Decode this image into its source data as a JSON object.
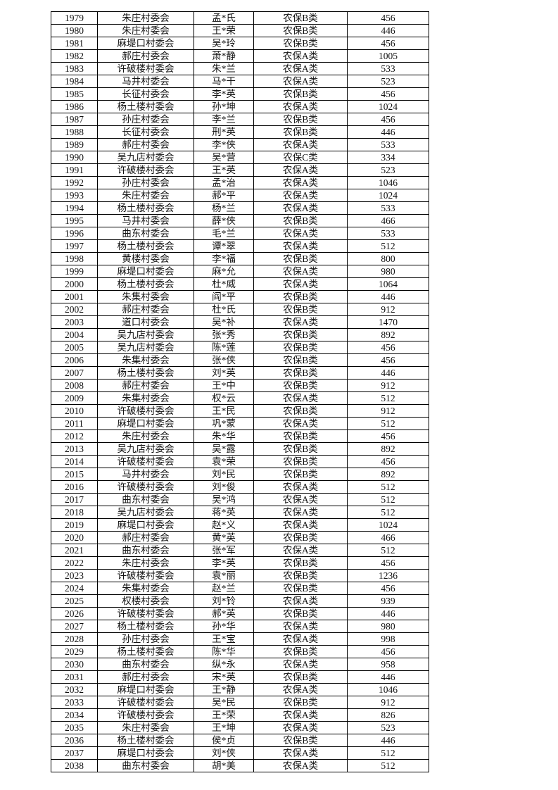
{
  "table": {
    "rows": [
      [
        "1979",
        "朱庄村委会",
        "孟*氏",
        "农保B类",
        "456"
      ],
      [
        "1980",
        "朱庄村委会",
        "王*荣",
        "农保B类",
        "446"
      ],
      [
        "1981",
        "麻堤口村委会",
        "吴*玲",
        "农保B类",
        "456"
      ],
      [
        "1982",
        "郝庄村委会",
        "萧*静",
        "农保A类",
        "1005"
      ],
      [
        "1983",
        "许破楼村委会",
        "朱*兰",
        "农保A类",
        "533"
      ],
      [
        "1984",
        "马井村委会",
        "马*干",
        "农保A类",
        "523"
      ],
      [
        "1985",
        "长征村委会",
        "李*英",
        "农保B类",
        "456"
      ],
      [
        "1986",
        "杨土楼村委会",
        "孙*坤",
        "农保A类",
        "1024"
      ],
      [
        "1987",
        "孙庄村委会",
        "李*兰",
        "农保B类",
        "456"
      ],
      [
        "1988",
        "长征村委会",
        "刑*英",
        "农保B类",
        "446"
      ],
      [
        "1989",
        "郝庄村委会",
        "李*侠",
        "农保A类",
        "533"
      ],
      [
        "1990",
        "吴九店村委会",
        "吴*营",
        "农保C类",
        "334"
      ],
      [
        "1991",
        "许破楼村委会",
        "王*英",
        "农保A类",
        "523"
      ],
      [
        "1992",
        "孙庄村委会",
        "孟*治",
        "农保A类",
        "1046"
      ],
      [
        "1993",
        "朱庄村委会",
        "郝*平",
        "农保A类",
        "1024"
      ],
      [
        "1994",
        "杨土楼村委会",
        "杨*兰",
        "农保A类",
        "533"
      ],
      [
        "1995",
        "马井村委会",
        "薛*侠",
        "农保B类",
        "466"
      ],
      [
        "1996",
        "曲东村委会",
        "毛*兰",
        "农保A类",
        "533"
      ],
      [
        "1997",
        "杨土楼村委会",
        "谭*翠",
        "农保A类",
        "512"
      ],
      [
        "1998",
        "黄楼村委会",
        "李*福",
        "农保B类",
        "800"
      ],
      [
        "1999",
        "麻堤口村委会",
        "麻*允",
        "农保A类",
        "980"
      ],
      [
        "2000",
        "杨土楼村委会",
        "杜*威",
        "农保A类",
        "1064"
      ],
      [
        "2001",
        "朱集村委会",
        "阎*平",
        "农保B类",
        "446"
      ],
      [
        "2002",
        "郝庄村委会",
        "杜*氏",
        "农保B类",
        "912"
      ],
      [
        "2003",
        "道口村委会",
        "吴*补",
        "农保A类",
        "1470"
      ],
      [
        "2004",
        "吴九店村委会",
        "张*秀",
        "农保B类",
        "892"
      ],
      [
        "2005",
        "吴九店村委会",
        "陈*莲",
        "农保B类",
        "456"
      ],
      [
        "2006",
        "朱集村委会",
        "张*侠",
        "农保B类",
        "456"
      ],
      [
        "2007",
        "杨土楼村委会",
        "刘*英",
        "农保B类",
        "446"
      ],
      [
        "2008",
        "郝庄村委会",
        "王*中",
        "农保B类",
        "912"
      ],
      [
        "2009",
        "朱集村委会",
        "权*云",
        "农保A类",
        "512"
      ],
      [
        "2010",
        "许破楼村委会",
        "王*民",
        "农保B类",
        "912"
      ],
      [
        "2011",
        "麻堤口村委会",
        "巩*蒙",
        "农保A类",
        "512"
      ],
      [
        "2012",
        "朱庄村委会",
        "朱*华",
        "农保B类",
        "456"
      ],
      [
        "2013",
        "吴九店村委会",
        "吴*露",
        "农保B类",
        "892"
      ],
      [
        "2014",
        "许破楼村委会",
        "袁*荣",
        "农保B类",
        "456"
      ],
      [
        "2015",
        "马井村委会",
        "刘*民",
        "农保B类",
        "892"
      ],
      [
        "2016",
        "许破楼村委会",
        "刘*俊",
        "农保A类",
        "512"
      ],
      [
        "2017",
        "曲东村委会",
        "吴*鸿",
        "农保A类",
        "512"
      ],
      [
        "2018",
        "吴九店村委会",
        "蒋*英",
        "农保A类",
        "512"
      ],
      [
        "2019",
        "麻堤口村委会",
        "赵*义",
        "农保A类",
        "1024"
      ],
      [
        "2020",
        "郝庄村委会",
        "黄*英",
        "农保B类",
        "466"
      ],
      [
        "2021",
        "曲东村委会",
        "张*军",
        "农保A类",
        "512"
      ],
      [
        "2022",
        "朱庄村委会",
        "李*英",
        "农保B类",
        "456"
      ],
      [
        "2023",
        "许破楼村委会",
        "袁*丽",
        "农保B类",
        "1236"
      ],
      [
        "2024",
        "朱集村委会",
        "赵*兰",
        "农保B类",
        "456"
      ],
      [
        "2025",
        "权楼村委会",
        "刘*铃",
        "农保A类",
        "939"
      ],
      [
        "2026",
        "许破楼村委会",
        "郝*英",
        "农保B类",
        "446"
      ],
      [
        "2027",
        "杨土楼村委会",
        "孙*华",
        "农保A类",
        "980"
      ],
      [
        "2028",
        "孙庄村委会",
        "王*宝",
        "农保A类",
        "998"
      ],
      [
        "2029",
        "杨土楼村委会",
        "陈*华",
        "农保B类",
        "456"
      ],
      [
        "2030",
        "曲东村委会",
        "纵*永",
        "农保A类",
        "958"
      ],
      [
        "2031",
        "郝庄村委会",
        "宋*英",
        "农保B类",
        "446"
      ],
      [
        "2032",
        "麻堤口村委会",
        "王*静",
        "农保A类",
        "1046"
      ],
      [
        "2033",
        "许破楼村委会",
        "吴*民",
        "农保B类",
        "912"
      ],
      [
        "2034",
        "许破楼村委会",
        "王*荣",
        "农保A类",
        "826"
      ],
      [
        "2035",
        "朱庄村委会",
        "王*坤",
        "农保A类",
        "523"
      ],
      [
        "2036",
        "杨土楼村委会",
        "侯*贞",
        "农保B类",
        "446"
      ],
      [
        "2037",
        "麻堤口村委会",
        "刘*侠",
        "农保A类",
        "512"
      ],
      [
        "2038",
        "曲东村委会",
        "胡*美",
        "农保A类",
        "512"
      ]
    ]
  }
}
